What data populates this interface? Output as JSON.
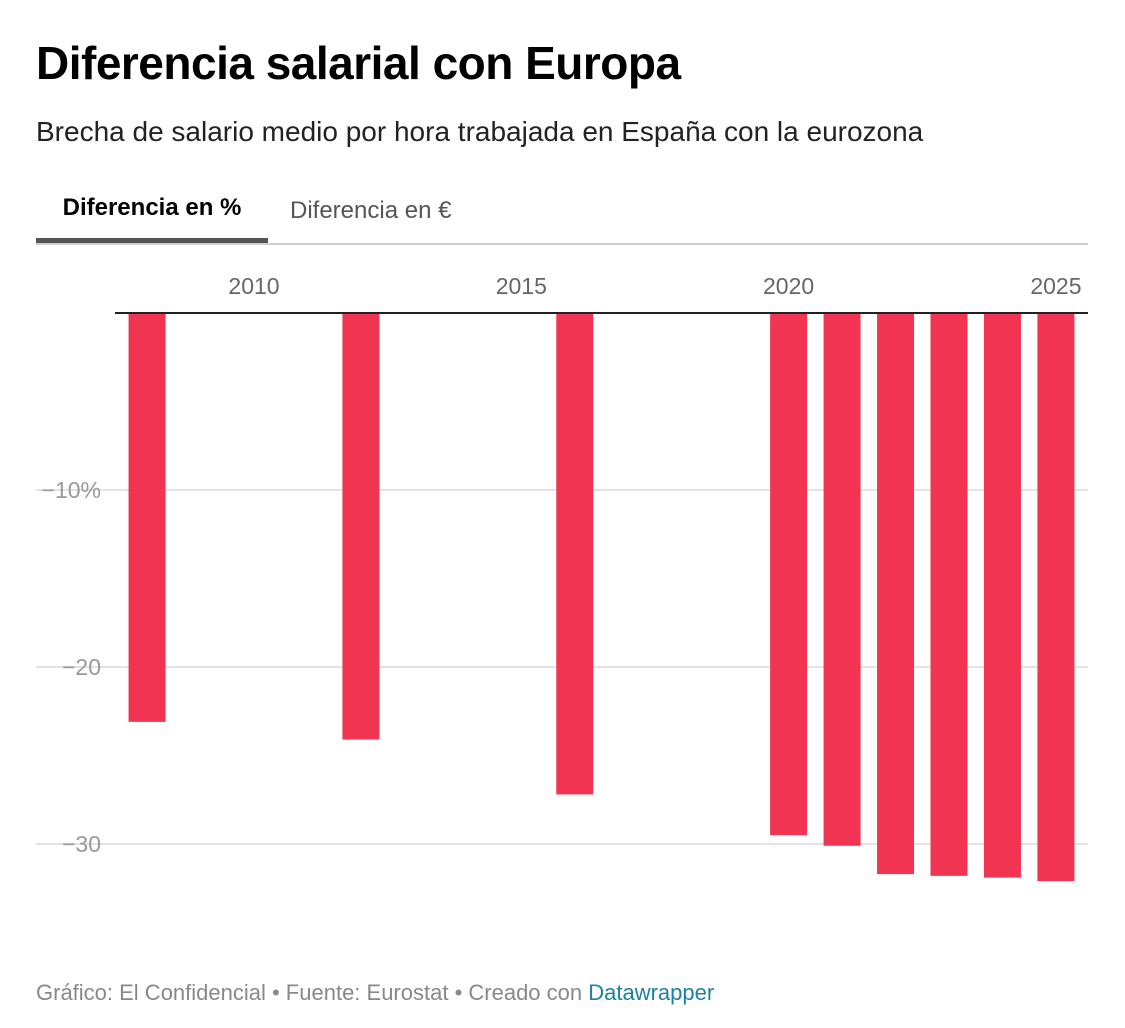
{
  "title": "Diferencia salarial con Europa",
  "subtitle": "Brecha de salario medio por hora trabajada en España con la eurozona",
  "tabs": [
    {
      "label": "Diferencia en %",
      "active": true
    },
    {
      "label": "Diferencia en €",
      "active": false
    }
  ],
  "colors": {
    "bar": "#f03452",
    "grid": "#e3e3e3",
    "axis": "#222222",
    "tick": "#999999"
  },
  "chart_data": {
    "type": "bar",
    "x": [
      2008,
      2012,
      2016,
      2020,
      2021,
      2022,
      2023,
      2024,
      2025
    ],
    "values": [
      -23.1,
      -24.1,
      -27.2,
      -29.5,
      -30.1,
      -31.7,
      -31.8,
      -31.9,
      -32.1
    ],
    "x_ticks": [
      2010,
      2015,
      2020,
      2025
    ],
    "x_tick_labels": [
      "2010",
      "2015",
      "2020",
      "2025"
    ],
    "y_ticks": [
      -10,
      -20,
      -30
    ],
    "y_tick_labels": [
      "−10%",
      "−20",
      "−30"
    ],
    "ylim": [
      -34,
      0
    ],
    "xlim": [
      2007.4,
      2025.6
    ],
    "title": "Diferencia salarial con Europa",
    "xlabel": "",
    "ylabel": "",
    "grid": true,
    "x_axis_position": "top"
  },
  "footer": {
    "prefix": "Gráfico: El Confidencial • Fuente: Eurostat • Creado con ",
    "link": "Datawrapper"
  }
}
